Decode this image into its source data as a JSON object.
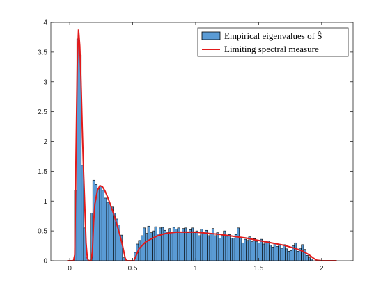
{
  "chart_data": {
    "type": "bar",
    "title": "",
    "xlabel": "",
    "ylabel": "",
    "xlim": [
      -0.15,
      2.25
    ],
    "ylim": [
      0,
      4
    ],
    "xticks": [
      {
        "value": 0,
        "label": "0"
      },
      {
        "value": 0.5,
        "label": "0.5"
      },
      {
        "value": 1,
        "label": "1"
      },
      {
        "value": 1.5,
        "label": "1.5"
      },
      {
        "value": 2,
        "label": "2"
      }
    ],
    "yticks": [
      {
        "value": 0,
        "label": "0"
      },
      {
        "value": 0.5,
        "label": "0.5"
      },
      {
        "value": 1,
        "label": "1"
      },
      {
        "value": 1.5,
        "label": "1.5"
      },
      {
        "value": 2,
        "label": "2"
      },
      {
        "value": 2.5,
        "label": "2.5"
      },
      {
        "value": 3,
        "label": "3"
      },
      {
        "value": 3.5,
        "label": "3.5"
      },
      {
        "value": 4,
        "label": "4"
      }
    ],
    "grid": false,
    "legend_position": "top-right",
    "colors": {
      "bars": "#5a9bd5",
      "bar_edge": "#000000",
      "curve": "#e21a1a"
    },
    "series": [
      {
        "name": "Empirical eigenvalues of Ŝ",
        "kind": "histogram",
        "bin_width": 0.0182,
        "bins": [
          {
            "x": 0.047,
            "y": 1.18
          },
          {
            "x": 0.065,
            "y": 3.72
          },
          {
            "x": 0.083,
            "y": 3.45
          },
          {
            "x": 0.101,
            "y": 1.6
          },
          {
            "x": 0.119,
            "y": 0.55
          },
          {
            "x": 0.137,
            "y": 0.06
          },
          {
            "x": 0.155,
            "y": 0.01
          },
          {
            "x": 0.173,
            "y": 0.8
          },
          {
            "x": 0.192,
            "y": 1.35
          },
          {
            "x": 0.21,
            "y": 1.28
          },
          {
            "x": 0.228,
            "y": 1.22
          },
          {
            "x": 0.246,
            "y": 1.25
          },
          {
            "x": 0.264,
            "y": 1.18
          },
          {
            "x": 0.283,
            "y": 1.05
          },
          {
            "x": 0.301,
            "y": 0.98
          },
          {
            "x": 0.319,
            "y": 0.95
          },
          {
            "x": 0.337,
            "y": 0.9
          },
          {
            "x": 0.355,
            "y": 0.8
          },
          {
            "x": 0.374,
            "y": 0.7
          },
          {
            "x": 0.392,
            "y": 0.6
          },
          {
            "x": 0.41,
            "y": 0.43
          },
          {
            "x": 0.428,
            "y": 0.05
          },
          {
            "x": 0.519,
            "y": 0.14
          },
          {
            "x": 0.537,
            "y": 0.28
          },
          {
            "x": 0.555,
            "y": 0.34
          },
          {
            "x": 0.574,
            "y": 0.42
          },
          {
            "x": 0.592,
            "y": 0.55
          },
          {
            "x": 0.61,
            "y": 0.46
          },
          {
            "x": 0.628,
            "y": 0.58
          },
          {
            "x": 0.646,
            "y": 0.47
          },
          {
            "x": 0.665,
            "y": 0.5
          },
          {
            "x": 0.683,
            "y": 0.57
          },
          {
            "x": 0.701,
            "y": 0.45
          },
          {
            "x": 0.719,
            "y": 0.55
          },
          {
            "x": 0.737,
            "y": 0.56
          },
          {
            "x": 0.756,
            "y": 0.51
          },
          {
            "x": 0.774,
            "y": 0.48
          },
          {
            "x": 0.792,
            "y": 0.54
          },
          {
            "x": 0.81,
            "y": 0.48
          },
          {
            "x": 0.828,
            "y": 0.56
          },
          {
            "x": 0.847,
            "y": 0.53
          },
          {
            "x": 0.865,
            "y": 0.55
          },
          {
            "x": 0.883,
            "y": 0.48
          },
          {
            "x": 0.901,
            "y": 0.54
          },
          {
            "x": 0.919,
            "y": 0.55
          },
          {
            "x": 0.938,
            "y": 0.47
          },
          {
            "x": 0.956,
            "y": 0.52
          },
          {
            "x": 0.974,
            "y": 0.55
          },
          {
            "x": 0.992,
            "y": 0.47
          },
          {
            "x": 1.01,
            "y": 0.5
          },
          {
            "x": 1.029,
            "y": 0.42
          },
          {
            "x": 1.047,
            "y": 0.53
          },
          {
            "x": 1.065,
            "y": 0.47
          },
          {
            "x": 1.083,
            "y": 0.51
          },
          {
            "x": 1.101,
            "y": 0.42
          },
          {
            "x": 1.12,
            "y": 0.46
          },
          {
            "x": 1.138,
            "y": 0.54
          },
          {
            "x": 1.156,
            "y": 0.42
          },
          {
            "x": 1.174,
            "y": 0.47
          },
          {
            "x": 1.192,
            "y": 0.38
          },
          {
            "x": 1.211,
            "y": 0.42
          },
          {
            "x": 1.229,
            "y": 0.5
          },
          {
            "x": 1.247,
            "y": 0.41
          },
          {
            "x": 1.265,
            "y": 0.44
          },
          {
            "x": 1.283,
            "y": 0.38
          },
          {
            "x": 1.302,
            "y": 0.38
          },
          {
            "x": 1.32,
            "y": 0.44
          },
          {
            "x": 1.338,
            "y": 0.55
          },
          {
            "x": 1.356,
            "y": 0.38
          },
          {
            "x": 1.374,
            "y": 0.3
          },
          {
            "x": 1.393,
            "y": 0.36
          },
          {
            "x": 1.411,
            "y": 0.34
          },
          {
            "x": 1.429,
            "y": 0.4
          },
          {
            "x": 1.447,
            "y": 0.32
          },
          {
            "x": 1.465,
            "y": 0.37
          },
          {
            "x": 1.484,
            "y": 0.32
          },
          {
            "x": 1.502,
            "y": 0.3
          },
          {
            "x": 1.52,
            "y": 0.36
          },
          {
            "x": 1.538,
            "y": 0.28
          },
          {
            "x": 1.556,
            "y": 0.33
          },
          {
            "x": 1.575,
            "y": 0.33
          },
          {
            "x": 1.593,
            "y": 0.26
          },
          {
            "x": 1.611,
            "y": 0.23
          },
          {
            "x": 1.629,
            "y": 0.29
          },
          {
            "x": 1.647,
            "y": 0.24
          },
          {
            "x": 1.666,
            "y": 0.26
          },
          {
            "x": 1.684,
            "y": 0.21
          },
          {
            "x": 1.702,
            "y": 0.27
          },
          {
            "x": 1.72,
            "y": 0.2
          },
          {
            "x": 1.738,
            "y": 0.16
          },
          {
            "x": 1.757,
            "y": 0.17
          },
          {
            "x": 1.775,
            "y": 0.25
          },
          {
            "x": 1.793,
            "y": 0.3
          },
          {
            "x": 1.811,
            "y": 0.16
          },
          {
            "x": 1.829,
            "y": 0.21
          },
          {
            "x": 1.848,
            "y": 0.27
          },
          {
            "x": 1.866,
            "y": 0.19
          },
          {
            "x": 1.884,
            "y": 0.09
          },
          {
            "x": 1.902,
            "y": 0.05
          },
          {
            "x": 1.92,
            "y": 0.03
          }
        ]
      },
      {
        "name": "Limiting spectral measure",
        "kind": "line",
        "points": [
          [
            -0.02,
            0
          ],
          [
            0.03,
            0
          ],
          [
            0.04,
            0.1
          ],
          [
            0.05,
            1.8
          ],
          [
            0.06,
            3.3
          ],
          [
            0.07,
            3.88
          ],
          [
            0.08,
            3.6
          ],
          [
            0.09,
            3.0
          ],
          [
            0.1,
            2.2
          ],
          [
            0.11,
            1.5
          ],
          [
            0.12,
            0.9
          ],
          [
            0.13,
            0.3
          ],
          [
            0.14,
            0.04
          ],
          [
            0.15,
            0
          ],
          [
            0.17,
            0
          ],
          [
            0.18,
            0.15
          ],
          [
            0.19,
            0.65
          ],
          [
            0.2,
            0.95
          ],
          [
            0.22,
            1.18
          ],
          [
            0.24,
            1.26
          ],
          [
            0.26,
            1.24
          ],
          [
            0.28,
            1.17
          ],
          [
            0.3,
            1.07
          ],
          [
            0.32,
            0.96
          ],
          [
            0.34,
            0.84
          ],
          [
            0.36,
            0.71
          ],
          [
            0.38,
            0.57
          ],
          [
            0.4,
            0.42
          ],
          [
            0.42,
            0.25
          ],
          [
            0.44,
            0.05
          ],
          [
            0.45,
            0
          ],
          [
            0.51,
            0
          ],
          [
            0.52,
            0.05
          ],
          [
            0.55,
            0.2
          ],
          [
            0.6,
            0.31
          ],
          [
            0.65,
            0.37
          ],
          [
            0.7,
            0.42
          ],
          [
            0.75,
            0.45
          ],
          [
            0.8,
            0.47
          ],
          [
            0.85,
            0.48
          ],
          [
            0.9,
            0.48
          ],
          [
            0.95,
            0.48
          ],
          [
            1.0,
            0.48
          ],
          [
            1.1,
            0.46
          ],
          [
            1.2,
            0.44
          ],
          [
            1.3,
            0.41
          ],
          [
            1.4,
            0.38
          ],
          [
            1.5,
            0.34
          ],
          [
            1.6,
            0.3
          ],
          [
            1.7,
            0.26
          ],
          [
            1.8,
            0.2
          ],
          [
            1.85,
            0.16
          ],
          [
            1.9,
            0.1
          ],
          [
            1.93,
            0.05
          ],
          [
            1.96,
            0.01
          ],
          [
            2.0,
            0
          ],
          [
            2.12,
            0
          ]
        ]
      }
    ]
  }
}
